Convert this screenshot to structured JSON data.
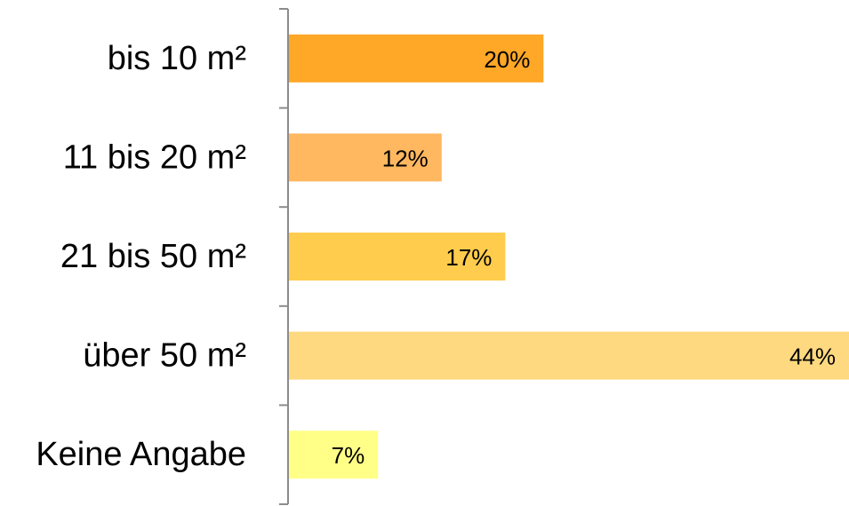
{
  "chart_data": {
    "type": "bar",
    "orientation": "horizontal",
    "categories": [
      "bis 10 m²",
      "11 bis 20 m²",
      "21 bis 50 m²",
      "über 50 m²",
      "Keine Angabe"
    ],
    "values": [
      20,
      12,
      17,
      44,
      7
    ],
    "value_labels": [
      "20%",
      "12%",
      "17%",
      "44%",
      "7%"
    ],
    "bar_colors": [
      "#FFA726",
      "#FFB760",
      "#FFCC4D",
      "#FFD980",
      "#FFFF88"
    ],
    "title": "",
    "xlabel": "",
    "ylabel": "",
    "xlim": [
      0,
      44
    ],
    "grid": false,
    "legend": "none"
  }
}
